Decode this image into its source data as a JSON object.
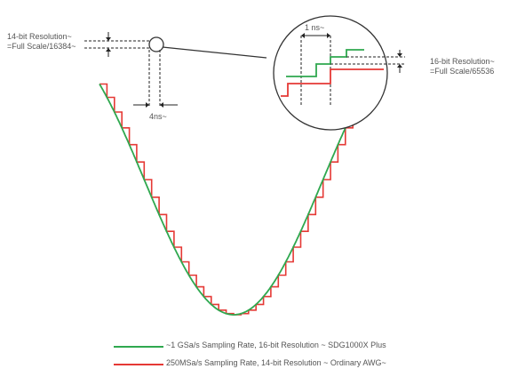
{
  "labels": {
    "left_res_line1": "14-bit Resolution~",
    "left_res_line2": "=Full Scale/16384~",
    "right_res_line1": "16-bit Resolution~",
    "right_res_line2": "=Full Scale/65536",
    "time_step_left": "4ns~",
    "time_step_zoom": "1 ns~"
  },
  "legend": [
    {
      "label": "~1 GSa/s Sampling Rate, 16-bit Resolution ~ SDG1000X Plus",
      "color": "#2fa84f"
    },
    {
      "label": "250MSa/s Sampling Rate, 14-bit Resolution ~ Ordinary AWG~",
      "color": "#e53935"
    }
  ],
  "colors": {
    "green": "#2fa84f",
    "red": "#e53935",
    "guide": "#222222"
  }
}
